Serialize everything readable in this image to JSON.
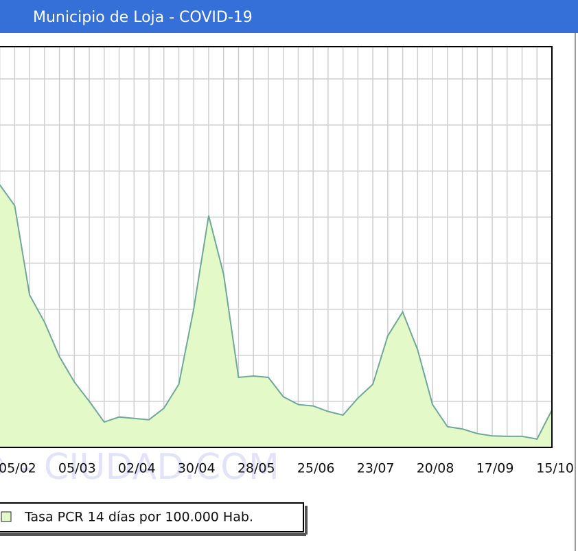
{
  "chart_data": {
    "type": "area",
    "title": "Municipio de Loja - COVID-19",
    "watermark": "© - CIUDAD.COM",
    "categories": [
      null,
      "05/02",
      null,
      null,
      null,
      "05/03",
      null,
      null,
      null,
      "02/04",
      null,
      null,
      null,
      "30/04",
      null,
      null,
      null,
      "28/05",
      null,
      null,
      null,
      "25/06",
      null,
      null,
      null,
      "23/07",
      null,
      null,
      null,
      "20/08",
      null,
      null,
      null,
      "17/09",
      null,
      null,
      null,
      "15/10"
    ],
    "series": [
      {
        "name": "Tasa PCR 14 días por 100.000 Hab.",
        "color": "#e4f9c8",
        "edge_color": "#6fa89a",
        "values": [
          5.7,
          5.25,
          3.31,
          2.72,
          1.97,
          1.42,
          1.0,
          0.55,
          0.66,
          0.63,
          0.6,
          0.85,
          1.37,
          3.01,
          5.03,
          3.76,
          1.52,
          1.55,
          1.52,
          1.1,
          0.93,
          0.9,
          0.78,
          0.7,
          1.07,
          1.37,
          2.42,
          2.94,
          2.12,
          0.93,
          0.45,
          0.4,
          0.3,
          0.25,
          0.24,
          0.24,
          0.18,
          0.81
        ]
      }
    ],
    "ylim": [
      0,
      8.7
    ],
    "yticks": [
      1,
      2,
      3,
      4,
      5,
      6,
      7,
      8
    ],
    "grid": true
  }
}
